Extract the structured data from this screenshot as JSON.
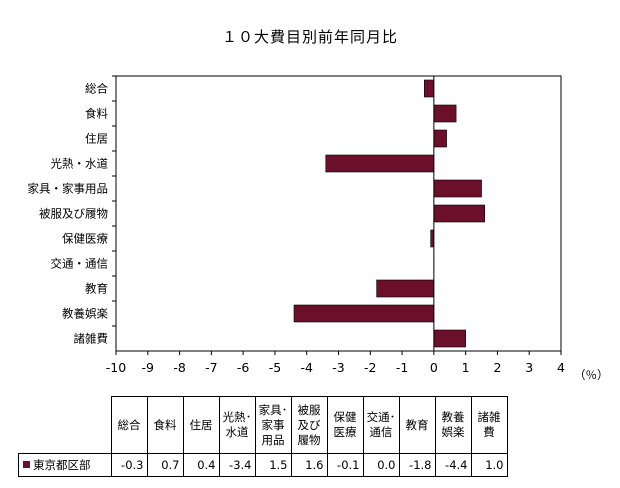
{
  "title": "１０大費目別前年同月比",
  "chart_data": {
    "type": "bar",
    "orientation": "horizontal",
    "title": "１０大費目別前年同月比",
    "categories": [
      "総合",
      "食料",
      "住居",
      "光熱・水道",
      "家具・家事用品",
      "被服及び履物",
      "保健医療",
      "交通・通信",
      "教育",
      "教養娯楽",
      "諸雑費"
    ],
    "series": [
      {
        "name": "東京都区部",
        "values": [
          -0.3,
          0.7,
          0.4,
          -3.4,
          1.5,
          1.6,
          -0.1,
          0.0,
          -1.8,
          -4.4,
          1.0
        ],
        "color": "#6b0f2a"
      }
    ],
    "xlim": [
      -10,
      4
    ],
    "xticks": [
      "-10",
      "-9",
      "-8",
      "-7",
      "-6",
      "-5",
      "-4",
      "-3",
      "-2",
      "-1",
      "0",
      "1",
      "2",
      "3",
      "4"
    ],
    "xunit": "（％）",
    "grid": false
  },
  "table": {
    "headers": [
      [
        "総合"
      ],
      [
        "食料"
      ],
      [
        "住居"
      ],
      [
        "光熱･",
        "水道"
      ],
      [
        "家具･",
        "家事",
        "用品"
      ],
      [
        "被服",
        "及び",
        "履物"
      ],
      [
        "保健",
        "医療"
      ],
      [
        "交通･",
        "通信"
      ],
      [
        "教育"
      ],
      [
        "教養",
        "娯楽"
      ],
      [
        "諸雑",
        "費"
      ]
    ],
    "row_label": "東京都区部",
    "values": [
      "-0.3",
      "0.7",
      "0.4",
      "-3.4",
      "1.5",
      "1.6",
      "-0.1",
      "0.0",
      "-1.8",
      "-4.4",
      "1.0"
    ]
  }
}
